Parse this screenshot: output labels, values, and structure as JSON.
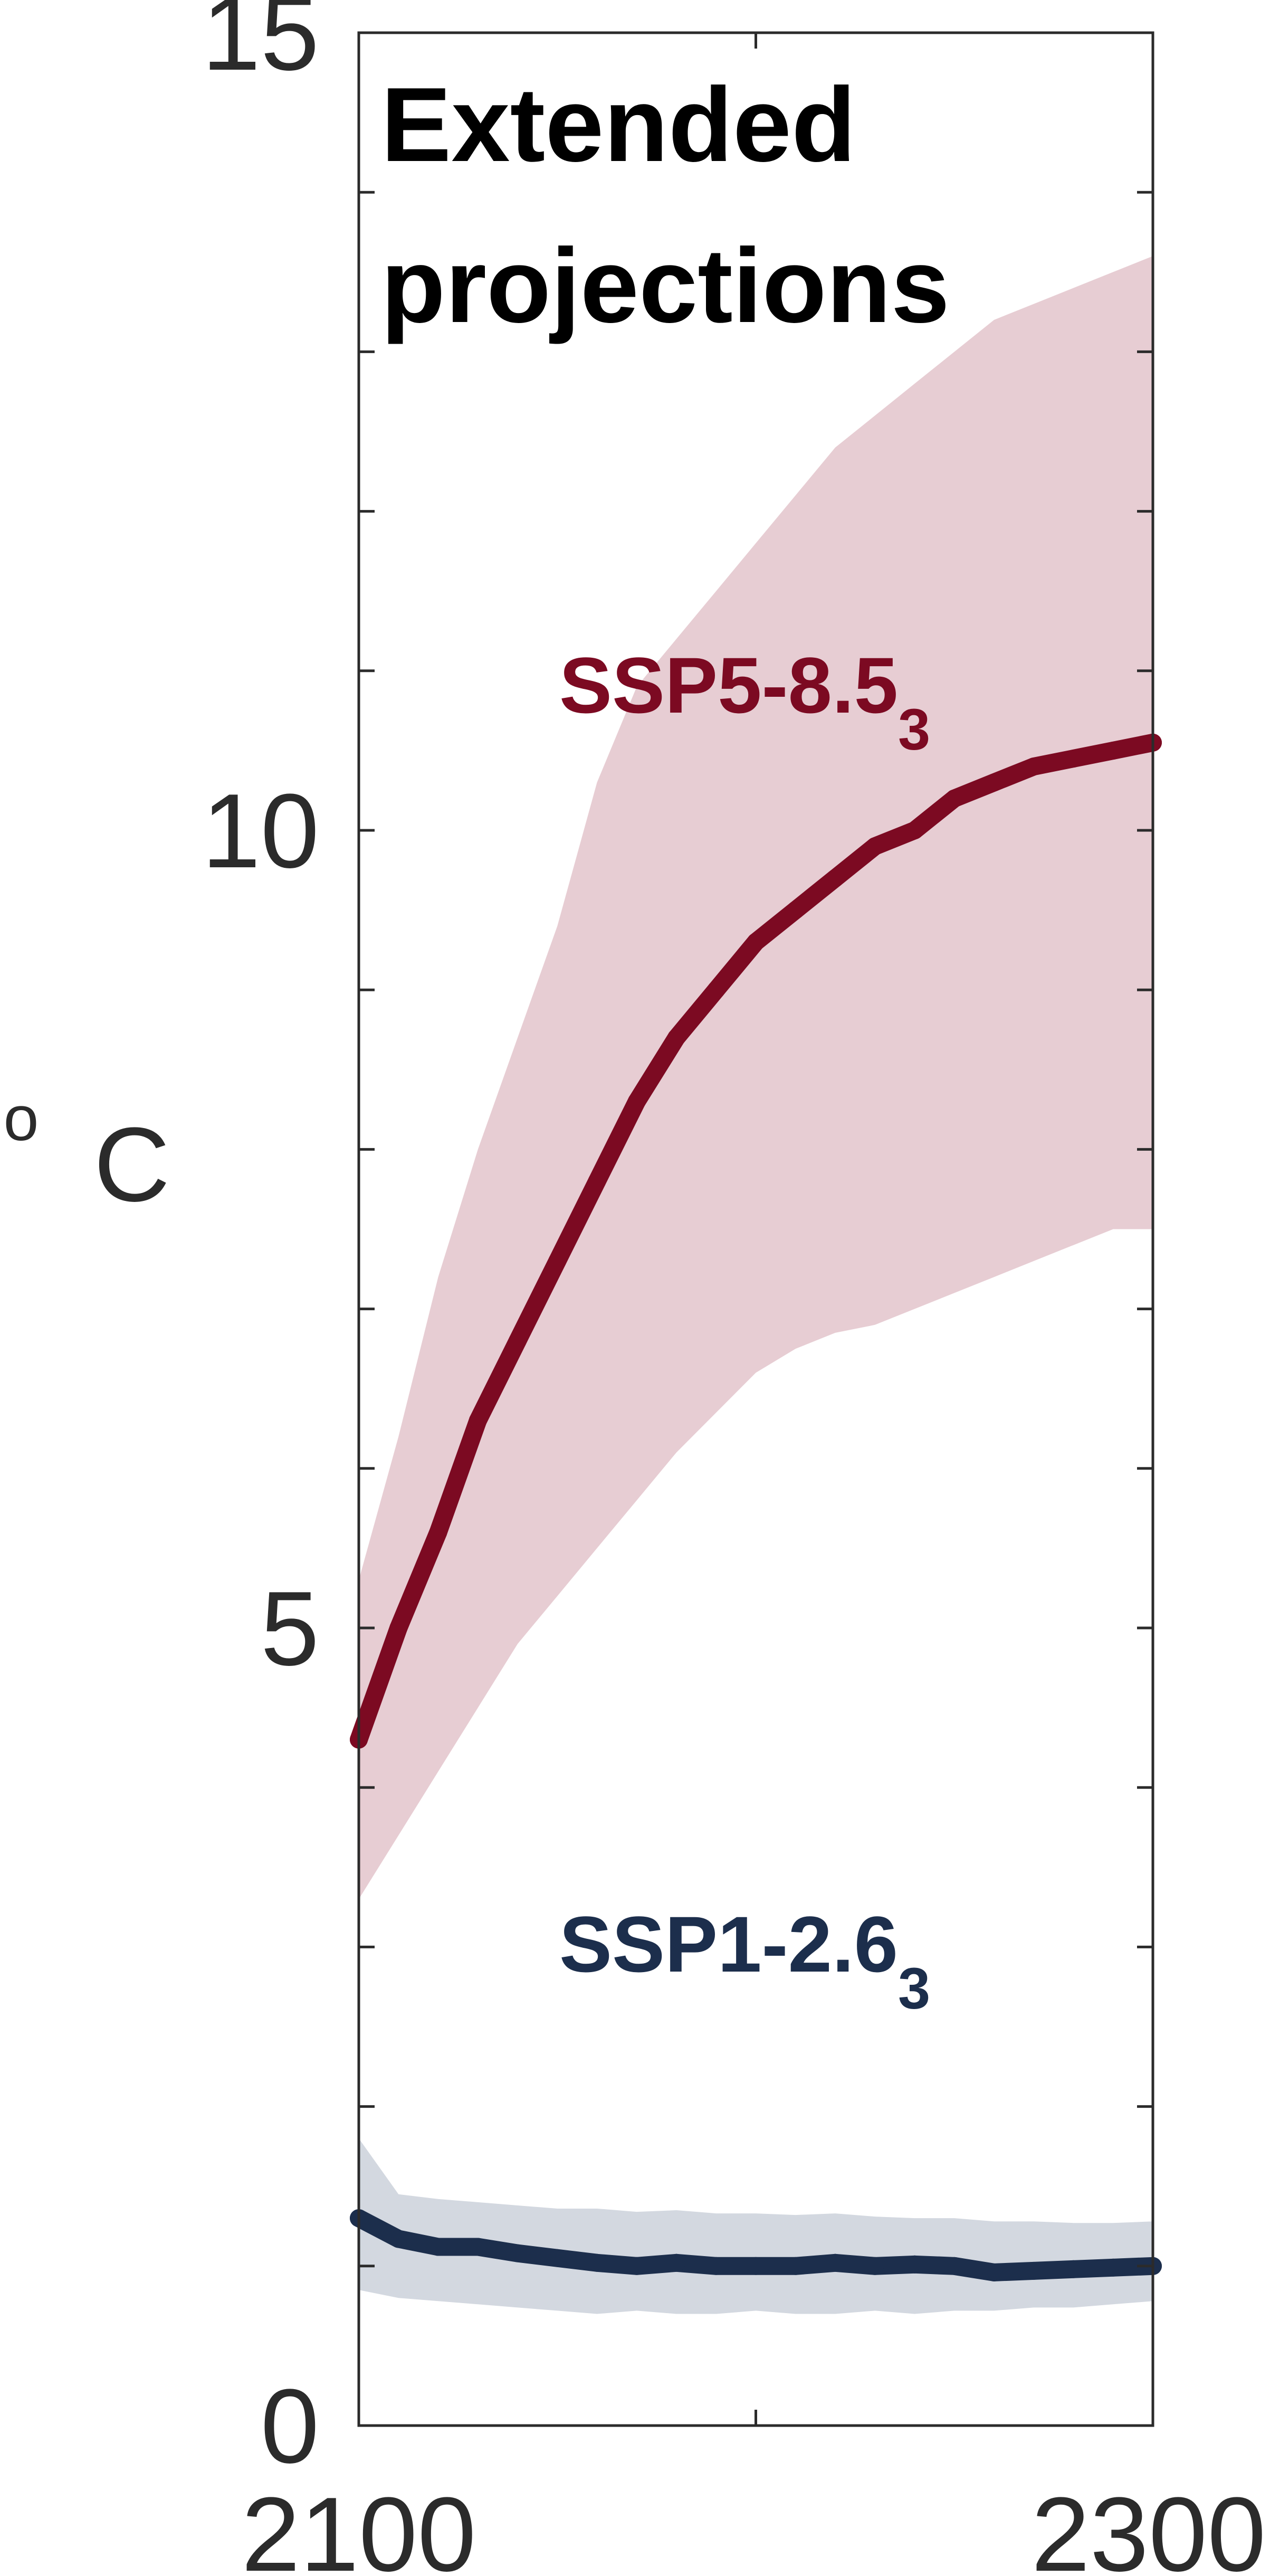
{
  "chart_data": {
    "type": "line",
    "title_lines": [
      "Extended",
      "projections"
    ],
    "ylabel_degree": "o",
    "ylabel_unit": "C",
    "xlabel": "",
    "xlim": [
      2100,
      2300
    ],
    "ylim": [
      0,
      15
    ],
    "xticks_major": [
      2100,
      2200,
      2300
    ],
    "xtick_labels": [
      "2100",
      "2300"
    ],
    "yticks_major": [
      0,
      1,
      2,
      3,
      4,
      5,
      6,
      7,
      8,
      9,
      10,
      11,
      12,
      13,
      14,
      15
    ],
    "ytick_labels": [
      "0",
      "5",
      "10",
      "15"
    ],
    "grid": false,
    "series": [
      {
        "name": "SSP5-8.5",
        "name_main": "SSP5-8.5",
        "name_sub": "3",
        "color": "#7c0a22",
        "band_color": "#e7cdd3",
        "x": [
          2100,
          2110,
          2120,
          2130,
          2140,
          2150,
          2160,
          2170,
          2180,
          2190,
          2200,
          2210,
          2220,
          2230,
          2240,
          2250,
          2260,
          2270,
          2280,
          2290,
          2300
        ],
        "values": [
          4.3,
          5.0,
          5.6,
          6.3,
          6.8,
          7.3,
          7.8,
          8.3,
          8.7,
          9.0,
          9.3,
          9.5,
          9.7,
          9.9,
          10.0,
          10.2,
          10.3,
          10.4,
          10.45,
          10.5,
          10.55
        ],
        "lower": [
          3.3,
          3.7,
          4.1,
          4.5,
          4.9,
          5.2,
          5.5,
          5.8,
          6.1,
          6.35,
          6.6,
          6.75,
          6.85,
          6.9,
          7.0,
          7.1,
          7.2,
          7.3,
          7.4,
          7.5,
          7.5
        ],
        "upper": [
          5.3,
          6.2,
          7.2,
          8.0,
          8.7,
          9.4,
          10.3,
          10.9,
          11.2,
          11.5,
          11.8,
          12.1,
          12.4,
          12.6,
          12.8,
          13.0,
          13.2,
          13.3,
          13.4,
          13.5,
          13.6
        ]
      },
      {
        "name": "SSP1-2.6",
        "name_main": "SSP1-2.6",
        "name_sub": "3",
        "color": "#1c2e4c",
        "band_color": "#d3d8e0",
        "x": [
          2100,
          2110,
          2120,
          2130,
          2140,
          2150,
          2160,
          2170,
          2180,
          2190,
          2200,
          2210,
          2220,
          2230,
          2240,
          2250,
          2260,
          2270,
          2280,
          2290,
          2300
        ],
        "values": [
          1.3,
          1.17,
          1.12,
          1.12,
          1.08,
          1.05,
          1.02,
          1.0,
          1.02,
          1.0,
          1.0,
          1.0,
          1.02,
          1.0,
          1.01,
          1.0,
          0.96,
          0.97,
          0.98,
          0.99,
          1.0
        ],
        "lower": [
          0.85,
          0.8,
          0.78,
          0.76,
          0.74,
          0.72,
          0.7,
          0.72,
          0.7,
          0.7,
          0.72,
          0.7,
          0.7,
          0.72,
          0.7,
          0.72,
          0.72,
          0.74,
          0.74,
          0.76,
          0.78
        ],
        "upper": [
          1.8,
          1.45,
          1.42,
          1.4,
          1.38,
          1.36,
          1.36,
          1.34,
          1.35,
          1.33,
          1.33,
          1.32,
          1.33,
          1.31,
          1.3,
          1.3,
          1.28,
          1.28,
          1.27,
          1.27,
          1.28
        ]
      }
    ]
  }
}
